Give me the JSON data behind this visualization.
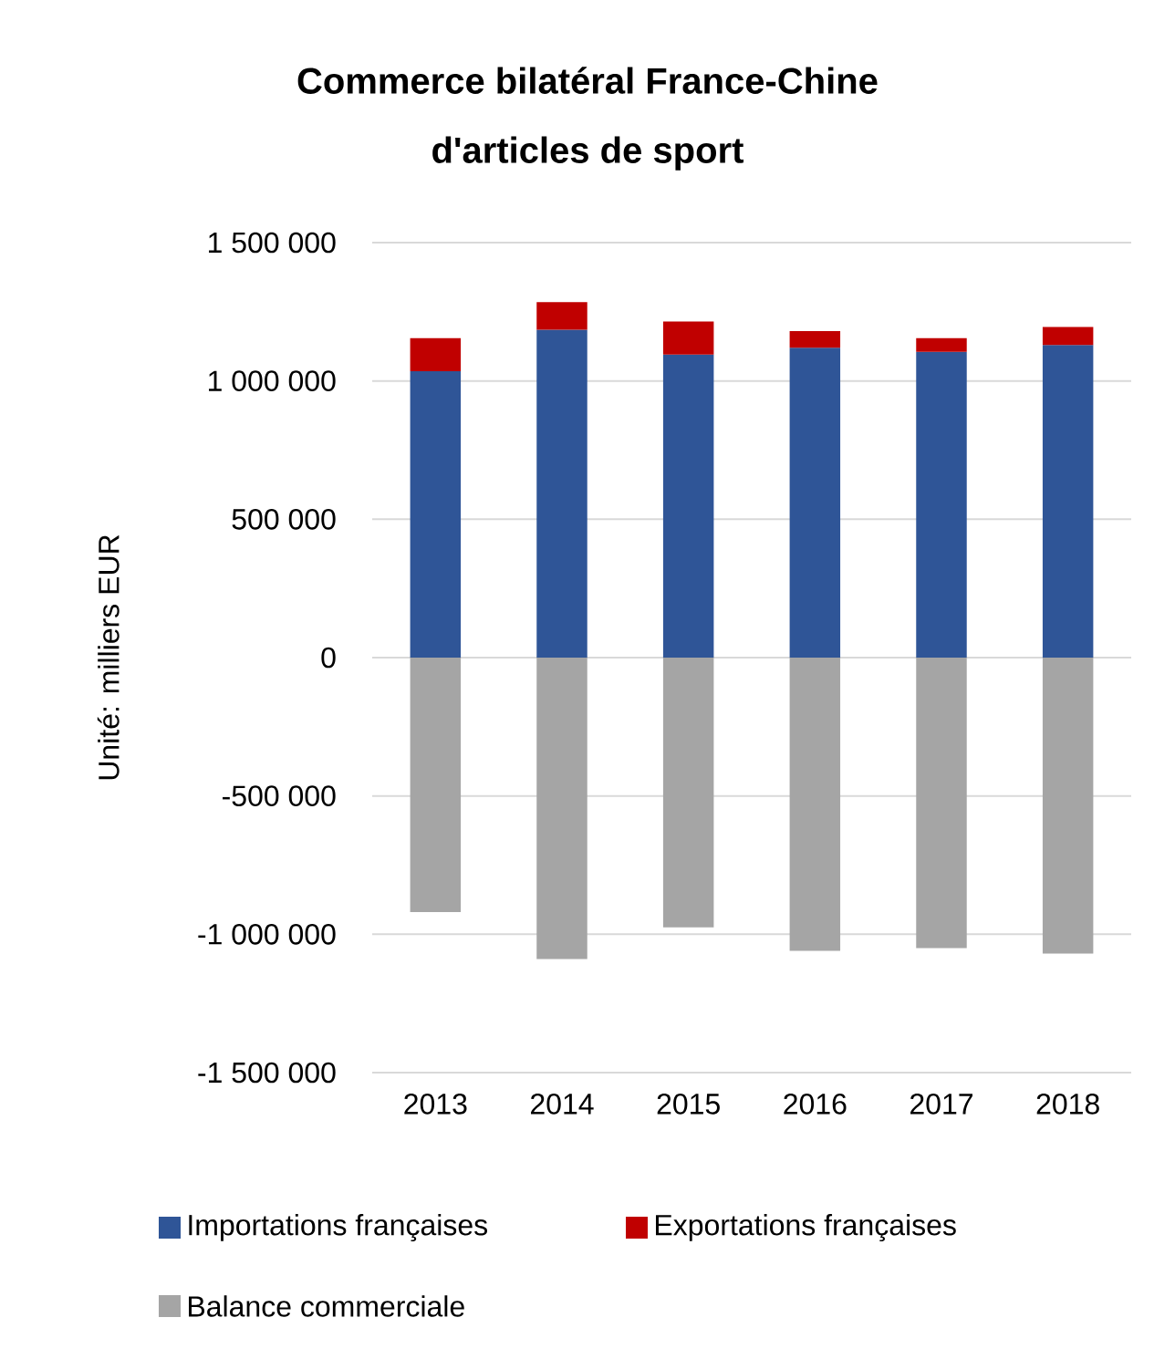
{
  "chart_data": {
    "type": "bar",
    "title": "Commerce bilatéral France-Chine\nd'articles de sport",
    "ylabel": "Unité: milliers EUR",
    "categories": [
      "2013",
      "2014",
      "2015",
      "2016",
      "2017",
      "2018"
    ],
    "stacked": true,
    "series": [
      {
        "name": "Importations françaises",
        "color": "#2f5597",
        "values": [
          1035000,
          1185000,
          1095000,
          1120000,
          1105000,
          1130000
        ]
      },
      {
        "name": "Exportations françaises",
        "color": "#c00000",
        "values": [
          120000,
          100000,
          120000,
          60000,
          50000,
          65000
        ]
      },
      {
        "name": "Balance commerciale",
        "color": "#a5a5a5",
        "values": [
          -920000,
          -1090000,
          -975000,
          -1060000,
          -1050000,
          -1070000
        ]
      }
    ],
    "ylim": [
      -1500000,
      1500000
    ],
    "yticks": [
      {
        "value": -1500000,
        "label": "-1 500 000"
      },
      {
        "value": -1000000,
        "label": "-1 000 000"
      },
      {
        "value": -500000,
        "label": "-500 000"
      },
      0,
      {
        "value": 500000,
        "label": "500 000"
      },
      {
        "value": 1000000,
        "label": "1 000 000"
      },
      {
        "value": 1500000,
        "label": "1 500 000"
      }
    ],
    "grid": "y",
    "legend": "bottom"
  }
}
